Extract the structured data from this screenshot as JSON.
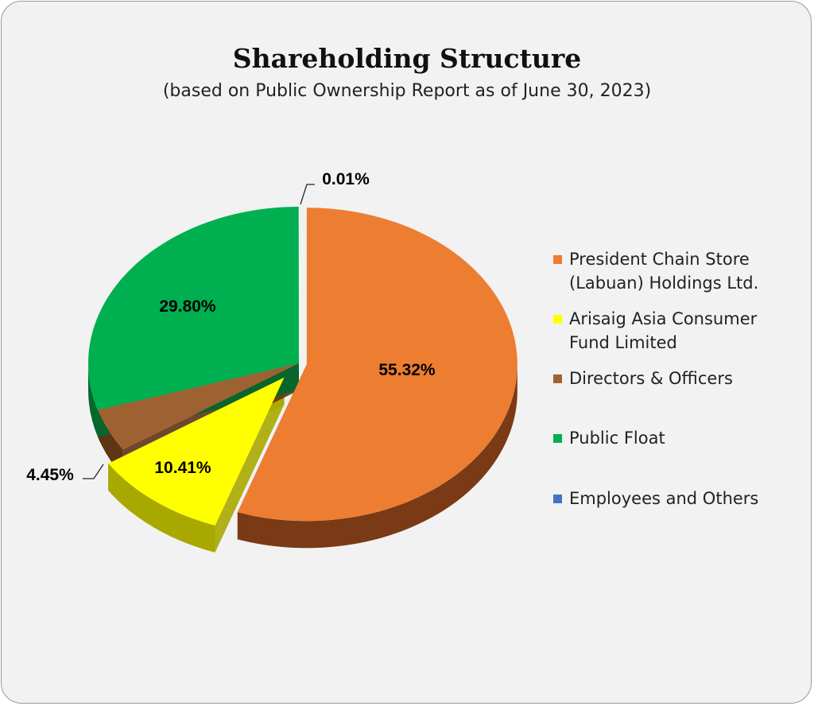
{
  "chart_data": {
    "type": "pie",
    "title": "Shareholding Structure",
    "subtitle": "(based on Public Ownership Report as of June 30, 2023)",
    "legend_position": "right",
    "series": [
      {
        "name": "President Chain Store (Labuan) Holdings Ltd.",
        "value": 55.32,
        "label": "55.32%",
        "color": "#ED7D31",
        "side_color": "#7A3A15"
      },
      {
        "name": "Arisaig Asia Consumer Fund Limited",
        "value": 10.41,
        "label": "10.41%",
        "color": "#FFFF00",
        "side_color": "#A8A800"
      },
      {
        "name": "Directors & Officers",
        "value": 4.45,
        "label": "4.45%",
        "color": "#9E6232",
        "side_color": "#5E3516"
      },
      {
        "name": "Public Float",
        "value": 29.8,
        "label": "29.80%",
        "color": "#00B050",
        "side_color": "#006A2E"
      },
      {
        "name": "Employees and Others",
        "value": 0.01,
        "label": "0.01%",
        "color": "#4472C4",
        "side_color": "#2B4A80"
      }
    ],
    "legend": [
      {
        "line1": "President Chain Store",
        "line2": "(Labuan) Holdings Ltd.",
        "color": "#ED7D31"
      },
      {
        "line1": "Arisaig Asia Consumer",
        "line2": "Fund Limited",
        "color": "#FFFF00"
      },
      {
        "line1": "Directors & Officers",
        "line2": "",
        "color": "#9E6232"
      },
      {
        "line1": "Public Float",
        "line2": "",
        "color": "#00B050"
      },
      {
        "line1": "Employees and Others",
        "line2": "",
        "color": "#4472C4"
      }
    ]
  }
}
